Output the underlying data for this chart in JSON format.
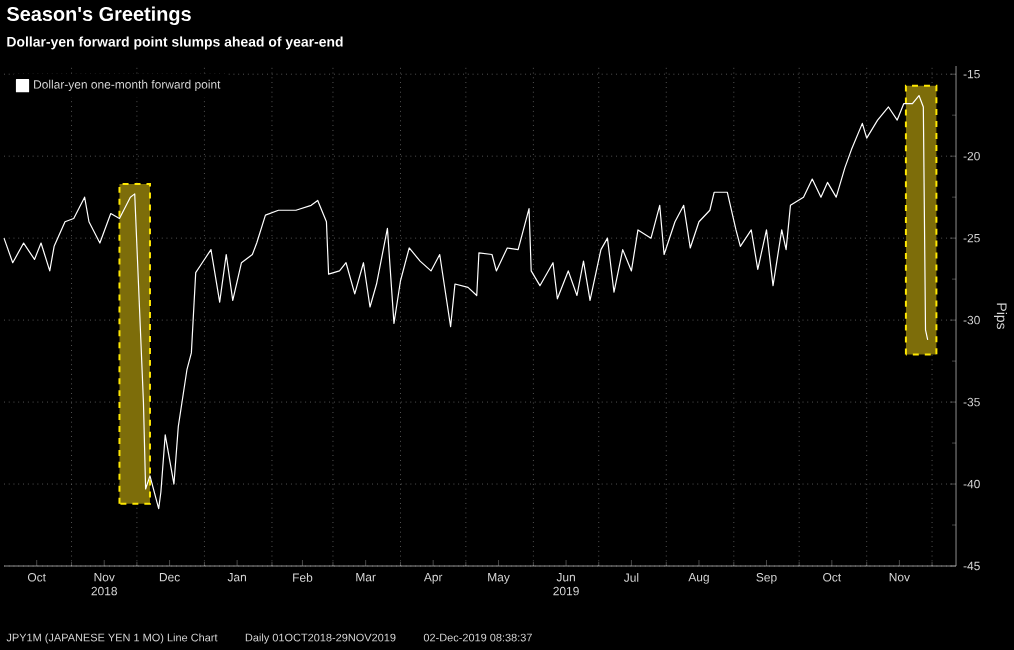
{
  "chart_data": {
    "type": "line",
    "title": "Season's Greetings",
    "subtitle": "Dollar-yen forward point slumps ahead of year-end",
    "ylabel": "Pips",
    "annotations": [
      "JPY1M (JAPANESE YEN 1 MO) Line Chart",
      "Daily 01OCT2018-29NOV2019",
      "02-Dec-2019 08:38:37"
    ],
    "x": [
      "2018-10-01",
      "2018-10-05",
      "2018-10-10",
      "2018-10-15",
      "2018-10-18",
      "2018-10-22",
      "2018-10-24",
      "2018-10-29",
      "2018-11-02",
      "2018-11-07",
      "2018-11-09",
      "2018-11-14",
      "2018-11-19",
      "2018-11-23",
      "2018-11-28",
      "2018-11-30",
      "2018-12-04",
      "2018-12-05",
      "2018-12-07",
      "2018-12-11",
      "2018-12-12",
      "2018-12-14",
      "2018-12-18",
      "2018-12-20",
      "2018-12-24",
      "2018-12-26",
      "2018-12-28",
      "2018-12-31",
      "2019-01-04",
      "2019-01-08",
      "2019-01-11",
      "2019-01-14",
      "2019-01-18",
      "2019-01-23",
      "2019-01-25",
      "2019-01-29",
      "2019-02-04",
      "2019-02-12",
      "2019-02-19",
      "2019-02-22",
      "2019-02-26",
      "2019-02-27",
      "2019-03-04",
      "2019-03-07",
      "2019-03-11",
      "2019-03-15",
      "2019-03-18",
      "2019-03-21",
      "2019-03-26",
      "2019-03-29",
      "2019-04-01",
      "2019-04-05",
      "2019-04-10",
      "2019-04-15",
      "2019-04-19",
      "2019-04-24",
      "2019-04-26",
      "2019-05-02",
      "2019-05-06",
      "2019-05-07",
      "2019-05-13",
      "2019-05-15",
      "2019-05-20",
      "2019-05-25",
      "2019-05-30",
      "2019-05-31",
      "2019-06-04",
      "2019-06-10",
      "2019-06-12",
      "2019-06-17",
      "2019-06-21",
      "2019-06-24",
      "2019-06-27",
      "2019-07-02",
      "2019-07-05",
      "2019-07-08",
      "2019-07-12",
      "2019-07-16",
      "2019-07-19",
      "2019-07-25",
      "2019-07-29",
      "2019-07-31",
      "2019-08-05",
      "2019-08-09",
      "2019-08-12",
      "2019-08-16",
      "2019-08-21",
      "2019-08-23",
      "2019-08-29",
      "2019-09-02",
      "2019-09-04",
      "2019-09-09",
      "2019-09-12",
      "2019-09-16",
      "2019-09-19",
      "2019-09-23",
      "2019-09-25",
      "2019-09-27",
      "2019-10-03",
      "2019-10-07",
      "2019-10-11",
      "2019-10-14",
      "2019-10-18",
      "2019-10-22",
      "2019-10-25",
      "2019-10-30",
      "2019-11-01",
      "2019-11-06",
      "2019-11-11",
      "2019-11-15",
      "2019-11-18",
      "2019-11-22",
      "2019-11-25",
      "2019-11-27",
      "2019-11-28",
      "2019-11-29"
    ],
    "series": [
      {
        "name": "Dollar-yen one-month forward point",
        "color": "#ffffff",
        "values": [
          -25,
          -26.5,
          -25.3,
          -26.3,
          -25.3,
          -27,
          -25.5,
          -24,
          -23.8,
          -22.5,
          -24,
          -25.3,
          -23.5,
          -23.8,
          -22.5,
          -22.3,
          -35,
          -40.3,
          -39.5,
          -41.5,
          -40.5,
          -37,
          -40,
          -36.5,
          -33,
          -32,
          -27.1,
          -26.5,
          -25.7,
          -28.9,
          -26,
          -28.8,
          -26.5,
          -26,
          -25.3,
          -23.6,
          -23.3,
          -23.3,
          -23,
          -22.7,
          -24,
          -27.2,
          -27,
          -26.5,
          -28.4,
          -26.5,
          -29.2,
          -27.8,
          -24.4,
          -30.2,
          -27.6,
          -25.6,
          -26.4,
          -27,
          -26,
          -30.4,
          -27.8,
          -28,
          -28.5,
          -25.9,
          -26,
          -27,
          -25.6,
          -25.7,
          -23.2,
          -27,
          -27.9,
          -26.5,
          -28.7,
          -27,
          -28.5,
          -26.4,
          -28.8,
          -25.7,
          -25,
          -28.3,
          -25.7,
          -27,
          -24.5,
          -25,
          -23,
          -26,
          -24,
          -23,
          -25.6,
          -24,
          -23.3,
          -22.2,
          -22.2,
          -24.5,
          -25.5,
          -24.5,
          -26.9,
          -24.5,
          -27.9,
          -24.5,
          -25.7,
          -23,
          -22.5,
          -21.4,
          -22.5,
          -21.6,
          -22.5,
          -20.7,
          -19.6,
          -18,
          -18.9,
          -17.8,
          -17,
          -17.8,
          -16.8,
          -16.8,
          -16.3,
          -17,
          -30.6,
          -31.2
        ]
      }
    ],
    "xlim": [
      "2018-10-01",
      "2019-12-12"
    ],
    "xticks": [
      {
        "value": "2018-10-16",
        "label": "Oct"
      },
      {
        "value": "2018-11-16",
        "label": "Nov 2018"
      },
      {
        "value": "2018-12-16",
        "label": "Dec"
      },
      {
        "value": "2019-01-16",
        "label": "Jan"
      },
      {
        "value": "2019-02-15",
        "label": "Feb"
      },
      {
        "value": "2019-03-16",
        "label": "Mar"
      },
      {
        "value": "2019-04-16",
        "label": "Apr"
      },
      {
        "value": "2019-05-16",
        "label": "May"
      },
      {
        "value": "2019-06-16",
        "label": "Jun 2019"
      },
      {
        "value": "2019-07-16",
        "label": "Jul"
      },
      {
        "value": "2019-08-16",
        "label": "Aug"
      },
      {
        "value": "2019-09-16",
        "label": "Sep"
      },
      {
        "value": "2019-10-16",
        "label": "Oct"
      },
      {
        "value": "2019-11-16",
        "label": "Nov"
      },
      {
        "value": "2018-11-01",
        "label": null
      },
      {
        "value": "2018-12-01",
        "label": null
      },
      {
        "value": "2019-01-01",
        "label": null
      },
      {
        "value": "2019-02-01",
        "label": null
      },
      {
        "value": "2019-03-01",
        "label": null
      },
      {
        "value": "2019-04-01",
        "label": null
      },
      {
        "value": "2019-05-01",
        "label": null
      },
      {
        "value": "2019-06-01",
        "label": null
      },
      {
        "value": "2019-07-01",
        "label": null
      },
      {
        "value": "2019-08-01",
        "label": null
      },
      {
        "value": "2019-09-01",
        "label": null
      },
      {
        "value": "2019-10-01",
        "label": null
      },
      {
        "value": "2019-11-01",
        "label": null
      },
      {
        "value": "2019-12-01",
        "label": null
      }
    ],
    "ylim": [
      -45,
      -14.5
    ],
    "yticks": [
      -15,
      -20,
      -25,
      -30,
      -35,
      -40,
      -45,
      {
        "value": -17.5,
        "label": null
      },
      {
        "value": -22.5,
        "label": null
      },
      {
        "value": -27.5,
        "label": null
      },
      {
        "value": -32.5,
        "label": null
      },
      {
        "value": -37.5,
        "label": null
      },
      {
        "value": -42.5,
        "label": null
      }
    ],
    "bands": [
      {
        "axis": "x",
        "from": "2018-11-23",
        "to": "2018-12-07",
        "color": "#7d6d0a"
      },
      {
        "axis": "x",
        "from": "2019-11-19",
        "to": "2019-12-03",
        "color": "#7d6d0a"
      }
    ],
    "grid": true,
    "legend": "top left",
    "marker": "none",
    "line_style": "solid"
  }
}
